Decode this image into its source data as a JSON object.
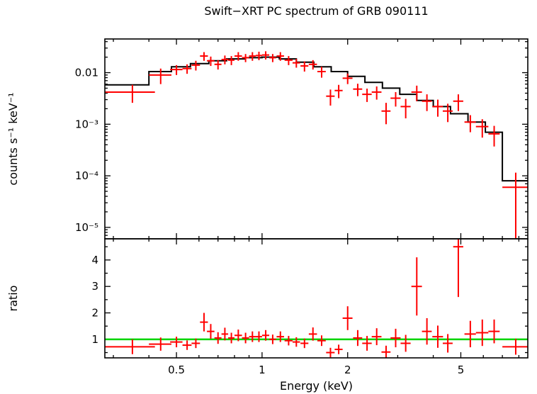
{
  "chart_data": {
    "type": "scatter",
    "title": "Swift−XRT PC spectrum of GRB 090111",
    "xlabel": "Energy (keV)",
    "x_scale": "log",
    "x_range": [
      0.28,
      8.6
    ],
    "x_major_ticks": [
      0.5,
      1,
      2,
      5
    ],
    "x_major_tick_labels": [
      "0.5",
      "1",
      "2",
      "5"
    ],
    "x_minor_ticks": [
      0.3,
      0.4,
      0.6,
      0.7,
      0.8,
      0.9,
      3,
      4,
      6,
      7,
      8
    ],
    "colors": {
      "data": "#ff0000",
      "model": "#000000",
      "reference": "#00d400"
    },
    "panels": [
      {
        "name": "spectrum",
        "ylabel": "counts s⁻¹ keV⁻¹",
        "y_scale": "log",
        "y_range": [
          6e-06,
          0.045
        ],
        "y_major_ticks": [
          0.01,
          0.001,
          0.0001,
          1e-05
        ],
        "y_major_tick_labels": [
          "0.01",
          "10⁻³",
          "10⁻⁴",
          "10⁻⁵"
        ],
        "series": [
          {
            "name": "data",
            "style": "errorbar-cross",
            "color": "#ff0000",
            "points_format": [
              "energy_keV",
              "energy_err",
              "rate_counts_s_keV",
              "rate_err"
            ],
            "points": [
              [
                0.35,
                0.07,
                0.0042,
                0.0016
              ],
              [
                0.44,
                0.04,
                0.009,
                0.003
              ],
              [
                0.5,
                0.025,
                0.0115,
                0.0025
              ],
              [
                0.545,
                0.02,
                0.012,
                0.0025
              ],
              [
                0.585,
                0.02,
                0.014,
                0.003
              ],
              [
                0.625,
                0.02,
                0.021,
                0.004
              ],
              [
                0.66,
                0.02,
                0.017,
                0.0035
              ],
              [
                0.7,
                0.02,
                0.0145,
                0.003
              ],
              [
                0.74,
                0.02,
                0.018,
                0.0035
              ],
              [
                0.78,
                0.02,
                0.0175,
                0.0035
              ],
              [
                0.825,
                0.025,
                0.021,
                0.004
              ],
              [
                0.875,
                0.025,
                0.0195,
                0.0035
              ],
              [
                0.925,
                0.025,
                0.021,
                0.004
              ],
              [
                0.975,
                0.025,
                0.0215,
                0.004
              ],
              [
                1.03,
                0.03,
                0.022,
                0.004
              ],
              [
                1.09,
                0.03,
                0.0195,
                0.0035
              ],
              [
                1.16,
                0.035,
                0.021,
                0.004
              ],
              [
                1.24,
                0.04,
                0.0175,
                0.0035
              ],
              [
                1.32,
                0.04,
                0.0155,
                0.003
              ],
              [
                1.41,
                0.045,
                0.0135,
                0.003
              ],
              [
                1.51,
                0.05,
                0.0145,
                0.003
              ],
              [
                1.62,
                0.055,
                0.0105,
                0.0025
              ],
              [
                1.74,
                0.06,
                0.0035,
                0.0012
              ],
              [
                1.86,
                0.06,
                0.0045,
                0.0013
              ],
              [
                2.0,
                0.08,
                0.0078,
                0.0018
              ],
              [
                2.17,
                0.08,
                0.0048,
                0.0013
              ],
              [
                2.34,
                0.09,
                0.0038,
                0.0011
              ],
              [
                2.53,
                0.1,
                0.0042,
                0.0012
              ],
              [
                2.73,
                0.1,
                0.0018,
                0.0008
              ],
              [
                2.95,
                0.12,
                0.0032,
                0.001
              ],
              [
                3.2,
                0.13,
                0.0022,
                0.0009
              ],
              [
                3.5,
                0.15,
                0.0042,
                0.0014
              ],
              [
                3.8,
                0.15,
                0.0028,
                0.001
              ],
              [
                4.15,
                0.18,
                0.0022,
                0.0008
              ],
              [
                4.5,
                0.18,
                0.0018,
                0.0007
              ],
              [
                4.9,
                0.2,
                0.0028,
                0.001
              ],
              [
                5.4,
                0.25,
                0.0011,
                0.0004
              ],
              [
                5.95,
                0.3,
                0.0009,
                0.00035
              ],
              [
                6.55,
                0.3,
                0.00065,
                0.00028
              ],
              [
                7.8,
                0.8,
                6e-05,
                5.5e-05
              ]
            ]
          },
          {
            "name": "model",
            "style": "step",
            "color": "#000000",
            "steps_format": [
              "bin_lo_keV",
              "bin_hi_keV",
              "model_rate"
            ],
            "steps": [
              [
                0.28,
                0.4,
                0.0058
              ],
              [
                0.4,
                0.48,
                0.0105
              ],
              [
                0.48,
                0.56,
                0.013
              ],
              [
                0.56,
                0.65,
                0.015
              ],
              [
                0.65,
                0.75,
                0.017
              ],
              [
                0.75,
                0.87,
                0.0185
              ],
              [
                0.87,
                1.0,
                0.0195
              ],
              [
                1.0,
                1.15,
                0.02
              ],
              [
                1.15,
                1.32,
                0.0185
              ],
              [
                1.32,
                1.52,
                0.016
              ],
              [
                1.52,
                1.75,
                0.013
              ],
              [
                1.75,
                2.0,
                0.0105
              ],
              [
                2.0,
                2.3,
                0.0085
              ],
              [
                2.3,
                2.65,
                0.0065
              ],
              [
                2.65,
                3.05,
                0.005
              ],
              [
                3.05,
                3.5,
                0.0038
              ],
              [
                3.5,
                4.0,
                0.0029
              ],
              [
                4.0,
                4.6,
                0.0022
              ],
              [
                4.6,
                5.3,
                0.0016
              ],
              [
                5.3,
                6.1,
                0.0011
              ],
              [
                6.1,
                7.0,
                0.0007
              ],
              [
                7.0,
                8.6,
                8e-05
              ]
            ]
          }
        ]
      },
      {
        "name": "ratio",
        "ylabel": "ratio",
        "y_scale": "linear",
        "y_range": [
          0.3,
          4.8
        ],
        "y_major_ticks": [
          1,
          2,
          3,
          4
        ],
        "y_major_tick_labels": [
          "1",
          "2",
          "3",
          "4"
        ],
        "y_minor_ticks": [
          0.5,
          1.5,
          2.5,
          3.5,
          4.5
        ],
        "reference_line": {
          "value": 1,
          "color": "#00d400"
        },
        "series": [
          {
            "name": "ratio",
            "style": "errorbar-cross",
            "color": "#ff0000",
            "points_format": [
              "energy_keV",
              "energy_err",
              "ratio",
              "ratio_err"
            ],
            "points": [
              [
                0.35,
                0.07,
                0.72,
                0.28
              ],
              [
                0.44,
                0.04,
                0.82,
                0.25
              ],
              [
                0.5,
                0.025,
                0.9,
                0.2
              ],
              [
                0.545,
                0.02,
                0.78,
                0.18
              ],
              [
                0.585,
                0.02,
                0.85,
                0.18
              ],
              [
                0.625,
                0.02,
                1.65,
                0.35
              ],
              [
                0.66,
                0.02,
                1.3,
                0.28
              ],
              [
                0.7,
                0.02,
                1.05,
                0.22
              ],
              [
                0.74,
                0.02,
                1.2,
                0.24
              ],
              [
                0.78,
                0.02,
                1.05,
                0.2
              ],
              [
                0.825,
                0.025,
                1.15,
                0.22
              ],
              [
                0.875,
                0.025,
                1.05,
                0.2
              ],
              [
                0.925,
                0.025,
                1.1,
                0.2
              ],
              [
                0.975,
                0.025,
                1.1,
                0.2
              ],
              [
                1.03,
                0.03,
                1.15,
                0.2
              ],
              [
                1.09,
                0.03,
                1.0,
                0.18
              ],
              [
                1.16,
                0.035,
                1.1,
                0.2
              ],
              [
                1.24,
                0.04,
                0.95,
                0.18
              ],
              [
                1.32,
                0.04,
                0.9,
                0.18
              ],
              [
                1.41,
                0.045,
                0.85,
                0.18
              ],
              [
                1.51,
                0.05,
                1.2,
                0.25
              ],
              [
                1.62,
                0.055,
                0.95,
                0.2
              ],
              [
                1.74,
                0.06,
                0.5,
                0.18
              ],
              [
                1.86,
                0.06,
                0.62,
                0.18
              ],
              [
                2.0,
                0.08,
                1.8,
                0.45
              ],
              [
                2.17,
                0.08,
                1.05,
                0.3
              ],
              [
                2.34,
                0.09,
                0.85,
                0.28
              ],
              [
                2.53,
                0.1,
                1.1,
                0.32
              ],
              [
                2.73,
                0.1,
                0.52,
                0.24
              ],
              [
                2.95,
                0.12,
                1.05,
                0.35
              ],
              [
                3.2,
                0.13,
                0.85,
                0.32
              ],
              [
                3.5,
                0.15,
                3.0,
                1.1
              ],
              [
                3.8,
                0.15,
                1.3,
                0.5
              ],
              [
                4.15,
                0.18,
                1.1,
                0.42
              ],
              [
                4.5,
                0.18,
                0.85,
                0.35
              ],
              [
                4.9,
                0.2,
                4.5,
                1.9
              ],
              [
                5.4,
                0.25,
                1.2,
                0.5
              ],
              [
                5.95,
                0.3,
                1.25,
                0.5
              ],
              [
                6.55,
                0.3,
                1.3,
                0.45
              ],
              [
                7.8,
                0.8,
                0.72,
                0.3
              ]
            ]
          }
        ]
      }
    ]
  }
}
